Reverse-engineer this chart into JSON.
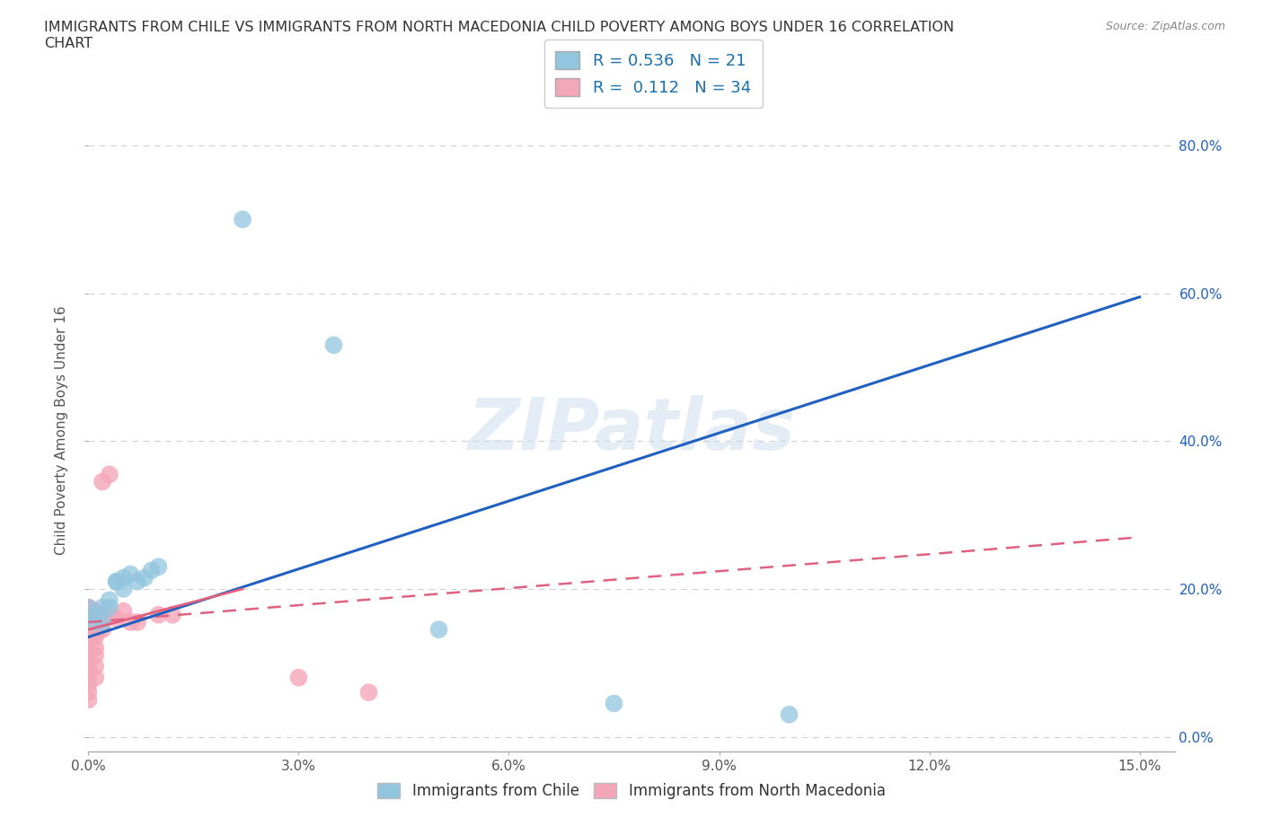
{
  "title": "IMMIGRANTS FROM CHILE VS IMMIGRANTS FROM NORTH MACEDONIA CHILD POVERTY AMONG BOYS UNDER 16 CORRELATION\nCHART",
  "source": "Source: ZipAtlas.com",
  "ylabel": "Child Poverty Among Boys Under 16",
  "watermark": "ZIPatlas",
  "chile_color": "#92c5de",
  "nmacedonia_color": "#f4a7b9",
  "chile_line_color": "#2060c0",
  "nmacedonia_line_color": "#e06080",
  "R_chile": 0.536,
  "N_chile": 21,
  "R_nmacedonia": 0.112,
  "N_nmacedonia": 34,
  "chile_scatter": [
    [
      0.0,
      0.175
    ],
    [
      0.001,
      0.165
    ],
    [
      0.001,
      0.155
    ],
    [
      0.002,
      0.175
    ],
    [
      0.002,
      0.155
    ],
    [
      0.003,
      0.175
    ],
    [
      0.003,
      0.185
    ],
    [
      0.004,
      0.21
    ],
    [
      0.004,
      0.21
    ],
    [
      0.005,
      0.215
    ],
    [
      0.005,
      0.2
    ],
    [
      0.006,
      0.22
    ],
    [
      0.007,
      0.21
    ],
    [
      0.008,
      0.215
    ],
    [
      0.009,
      0.225
    ],
    [
      0.01,
      0.23
    ],
    [
      0.022,
      0.7
    ],
    [
      0.035,
      0.53
    ],
    [
      0.05,
      0.145
    ],
    [
      0.075,
      0.045
    ],
    [
      0.1,
      0.03
    ]
  ],
  "nmacedonia_scatter": [
    [
      0.0,
      0.17
    ],
    [
      0.0,
      0.175
    ],
    [
      0.0,
      0.15
    ],
    [
      0.0,
      0.145
    ],
    [
      0.0,
      0.16
    ],
    [
      0.0,
      0.13
    ],
    [
      0.0,
      0.12
    ],
    [
      0.0,
      0.11
    ],
    [
      0.0,
      0.1
    ],
    [
      0.0,
      0.09
    ],
    [
      0.0,
      0.08
    ],
    [
      0.0,
      0.07
    ],
    [
      0.0,
      0.06
    ],
    [
      0.0,
      0.05
    ],
    [
      0.001,
      0.155
    ],
    [
      0.001,
      0.145
    ],
    [
      0.001,
      0.135
    ],
    [
      0.001,
      0.12
    ],
    [
      0.001,
      0.11
    ],
    [
      0.001,
      0.095
    ],
    [
      0.001,
      0.08
    ],
    [
      0.002,
      0.345
    ],
    [
      0.002,
      0.155
    ],
    [
      0.002,
      0.145
    ],
    [
      0.003,
      0.355
    ],
    [
      0.003,
      0.165
    ],
    [
      0.004,
      0.16
    ],
    [
      0.005,
      0.17
    ],
    [
      0.006,
      0.155
    ],
    [
      0.007,
      0.155
    ],
    [
      0.01,
      0.165
    ],
    [
      0.012,
      0.165
    ],
    [
      0.03,
      0.08
    ],
    [
      0.04,
      0.06
    ]
  ],
  "xlim": [
    0.0,
    0.155
  ],
  "ylim": [
    -0.02,
    0.85
  ],
  "yticks": [
    0.0,
    0.2,
    0.4,
    0.6,
    0.8
  ],
  "ytick_labels": [
    "0.0%",
    "20.0%",
    "40.0%",
    "60.0%",
    "80.0%"
  ],
  "xticks": [
    0.0,
    0.03,
    0.06,
    0.09,
    0.12,
    0.15
  ],
  "xtick_labels": [
    "0.0%",
    "3.0%",
    "6.0%",
    "9.0%",
    "12.0%",
    "15.0%"
  ],
  "grid_color": "#d0d0d0",
  "background_color": "#ffffff",
  "chile_trend_x": [
    0.0,
    0.15
  ],
  "chile_trend_y": [
    0.135,
    0.595
  ],
  "nmac_dashed_trend_x": [
    0.0,
    0.15
  ],
  "nmac_dashed_trend_y": [
    0.155,
    0.27
  ],
  "nmac_solid_trend_x": [
    0.0,
    0.022
  ],
  "nmac_solid_trend_y": [
    0.145,
    0.2
  ]
}
